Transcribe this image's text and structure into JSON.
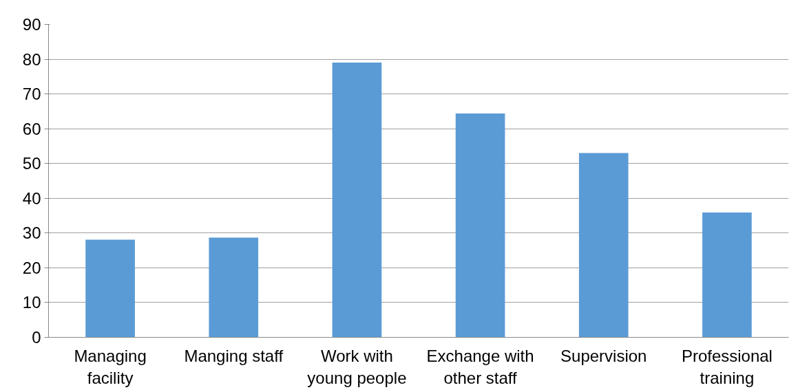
{
  "chart_data": {
    "type": "bar",
    "categories": [
      "Managing facility",
      "Manging staff",
      "Work with young people",
      "Exchange with other staff",
      "Supervision",
      "Professional training"
    ],
    "values": [
      28.1,
      28.7,
      79.0,
      64.4,
      53.0,
      35.9
    ],
    "color": "#5b9bd5",
    "ylim": [
      0,
      90
    ],
    "yticks": [
      0,
      10,
      20,
      30,
      40,
      50,
      60,
      70,
      80,
      90
    ],
    "grid": "y"
  }
}
